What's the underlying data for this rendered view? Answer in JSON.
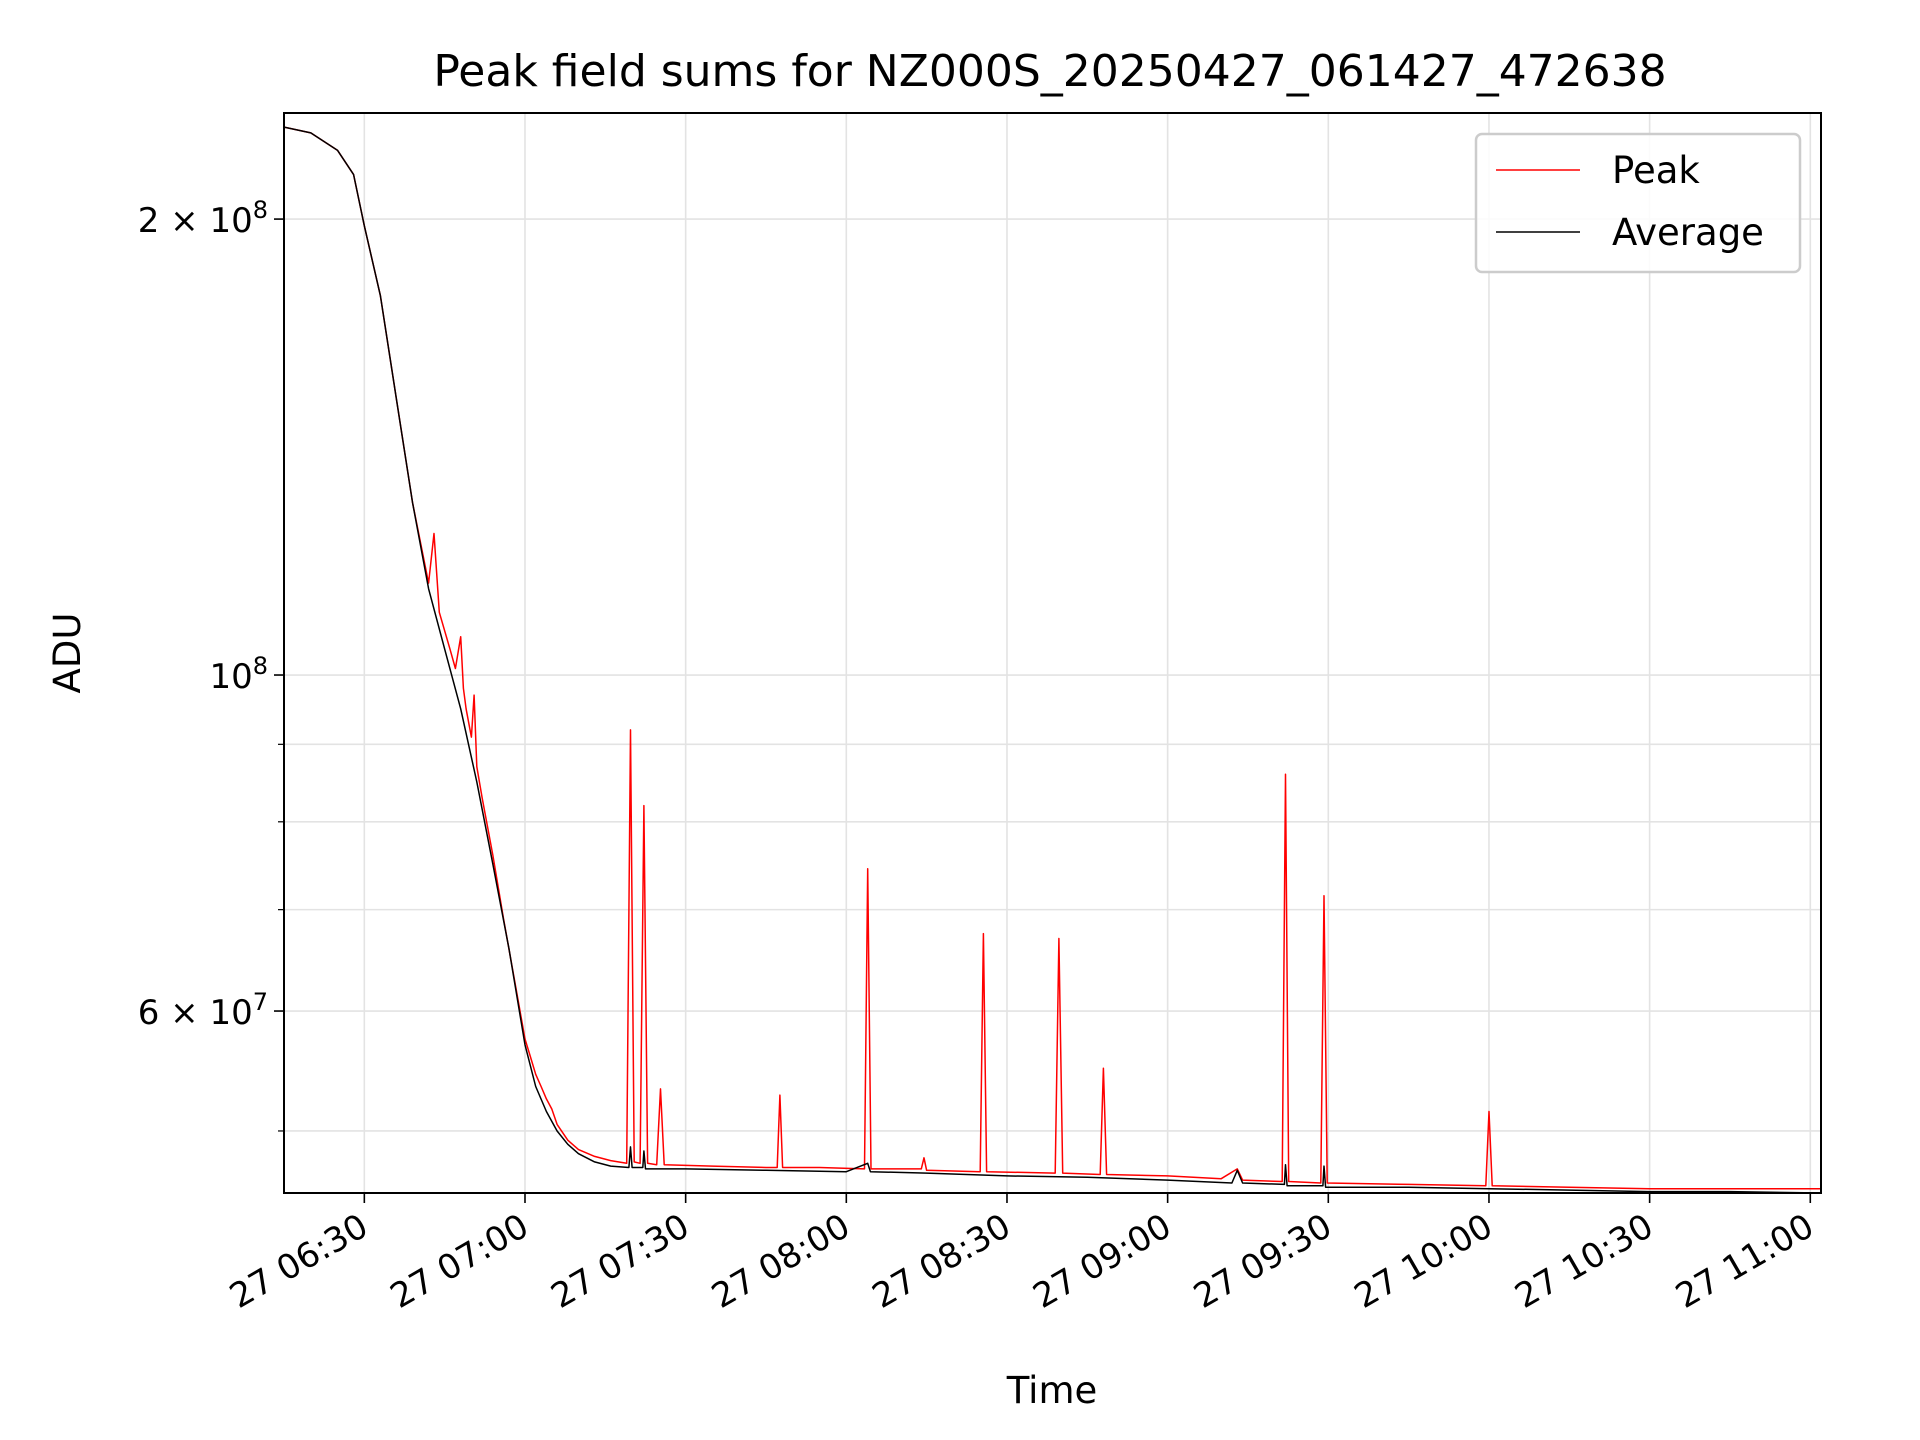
{
  "chart_data": {
    "type": "line",
    "title": "Peak field sums for NZ000S_20250427_061427_472638",
    "xlabel": "Time",
    "ylabel": "ADU",
    "y_scale": "log",
    "ylim": [
      45500000,
      235000000
    ],
    "xlim": [
      "2025-04-27 06:15",
      "2025-04-27 11:02"
    ],
    "x_ticks": [
      {
        "t": "2025-04-27 06:30",
        "label": "27 06:30"
      },
      {
        "t": "2025-04-27 07:00",
        "label": "27 07:00"
      },
      {
        "t": "2025-04-27 07:30",
        "label": "27 07:30"
      },
      {
        "t": "2025-04-27 08:00",
        "label": "27 08:00"
      },
      {
        "t": "2025-04-27 08:30",
        "label": "27 08:30"
      },
      {
        "t": "2025-04-27 09:00",
        "label": "27 09:00"
      },
      {
        "t": "2025-04-27 09:30",
        "label": "27 09:30"
      },
      {
        "t": "2025-04-27 10:00",
        "label": "27 10:00"
      },
      {
        "t": "2025-04-27 10:30",
        "label": "27 10:30"
      },
      {
        "t": "2025-04-27 11:00",
        "label": "27 11:00"
      }
    ],
    "y_major_ticks": [
      {
        "v": 100000000,
        "base": "10",
        "exp": "8"
      },
      {
        "v": 200000000,
        "base": "2 × 10",
        "exp": "8"
      },
      {
        "v": 60000000,
        "base": "6 × 10",
        "exp": "7"
      }
    ],
    "y_minor_ticks": [
      50000000,
      70000000,
      80000000,
      90000000
    ],
    "grid": true,
    "legend_position": "top-right",
    "series": [
      {
        "name": "Peak",
        "color": "#ff0000",
        "points": [
          [
            "2025-04-27 06:15",
            230000000
          ],
          [
            "2025-04-27 06:20",
            228000000
          ],
          [
            "2025-04-27 06:25",
            222000000
          ],
          [
            "2025-04-27 06:28",
            214000000
          ],
          [
            "2025-04-27 06:30",
            198000000
          ],
          [
            "2025-04-27 06:33",
            178000000
          ],
          [
            "2025-04-27 06:36",
            152000000
          ],
          [
            "2025-04-27 06:39",
            130000000
          ],
          [
            "2025-04-27 06:42",
            115000000
          ],
          [
            "2025-04-27 06:43",
            124000000
          ],
          [
            "2025-04-27 06:44",
            110000000
          ],
          [
            "2025-04-27 06:46",
            104000000
          ],
          [
            "2025-04-27 06:47",
            101000000
          ],
          [
            "2025-04-27 06:48",
            106000000
          ],
          [
            "2025-04-27 06:48.5",
            98000000
          ],
          [
            "2025-04-27 06:49",
            95000000
          ],
          [
            "2025-04-27 06:50",
            91000000
          ],
          [
            "2025-04-27 06:50.5",
            97000000
          ],
          [
            "2025-04-27 06:51",
            87000000
          ],
          [
            "2025-04-27 06:52",
            83000000
          ],
          [
            "2025-04-27 06:54",
            76000000
          ],
          [
            "2025-04-27 06:56",
            69000000
          ],
          [
            "2025-04-27 06:58",
            63000000
          ],
          [
            "2025-04-27 07:00",
            57500000
          ],
          [
            "2025-04-27 07:01",
            56000000
          ],
          [
            "2025-04-27 07:02",
            54500000
          ],
          [
            "2025-04-27 07:03",
            53500000
          ],
          [
            "2025-04-27 07:04",
            52500000
          ],
          [
            "2025-04-27 07:05",
            51700000
          ],
          [
            "2025-04-27 07:06",
            50500000
          ],
          [
            "2025-04-27 07:08",
            49300000
          ],
          [
            "2025-04-27 07:10",
            48600000
          ],
          [
            "2025-04-27 07:13",
            48100000
          ],
          [
            "2025-04-27 07:16",
            47800000
          ],
          [
            "2025-04-27 07:19",
            47600000
          ],
          [
            "2025-04-27 07:19.7",
            92000000
          ],
          [
            "2025-04-27 07:20.4",
            47700000
          ],
          [
            "2025-04-27 07:21.5",
            47600000
          ],
          [
            "2025-04-27 07:22.2",
            82000000
          ],
          [
            "2025-04-27 07:22.9",
            47600000
          ],
          [
            "2025-04-27 07:24.6",
            47500000
          ],
          [
            "2025-04-27 07:25.3",
            53300000
          ],
          [
            "2025-04-27 07:26",
            47500000
          ],
          [
            "2025-04-27 07:35",
            47400000
          ],
          [
            "2025-04-27 07:45",
            47300000
          ],
          [
            "2025-04-27 07:47.1",
            47300000
          ],
          [
            "2025-04-27 07:47.6",
            52800000
          ],
          [
            "2025-04-27 07:48.1",
            47300000
          ],
          [
            "2025-04-27 07:55",
            47300000
          ],
          [
            "2025-04-27 08:03.4",
            47200000
          ],
          [
            "2025-04-27 08:04",
            74500000
          ],
          [
            "2025-04-27 08:04.6",
            47200000
          ],
          [
            "2025-04-27 08:14",
            47200000
          ],
          [
            "2025-04-27 08:14.5",
            48000000
          ],
          [
            "2025-04-27 08:15",
            47100000
          ],
          [
            "2025-04-27 08:25",
            47000000
          ],
          [
            "2025-04-27 08:25.6",
            67500000
          ],
          [
            "2025-04-27 08:26.2",
            47000000
          ],
          [
            "2025-04-27 08:39",
            46900000
          ],
          [
            "2025-04-27 08:39.7",
            67000000
          ],
          [
            "2025-04-27 08:40.4",
            46900000
          ],
          [
            "2025-04-27 08:47.4",
            46800000
          ],
          [
            "2025-04-27 08:48",
            55000000
          ],
          [
            "2025-04-27 08:48.6",
            46800000
          ],
          [
            "2025-04-27 09:00",
            46700000
          ],
          [
            "2025-04-27 09:10",
            46500000
          ],
          [
            "2025-04-27 09:13",
            47200000
          ],
          [
            "2025-04-27 09:14",
            46400000
          ],
          [
            "2025-04-27 09:21.4",
            46300000
          ],
          [
            "2025-04-27 09:22",
            86000000
          ],
          [
            "2025-04-27 09:22.6",
            46300000
          ],
          [
            "2025-04-27 09:28.6",
            46200000
          ],
          [
            "2025-04-27 09:29.2",
            71500000
          ],
          [
            "2025-04-27 09:29.8",
            46200000
          ],
          [
            "2025-04-27 09:45",
            46100000
          ],
          [
            "2025-04-27 09:59.4",
            46000000
          ],
          [
            "2025-04-27 10:00",
            51500000
          ],
          [
            "2025-04-27 10:00.6",
            46000000
          ],
          [
            "2025-04-27 10:15",
            45900000
          ],
          [
            "2025-04-27 10:30",
            45800000
          ],
          [
            "2025-04-27 10:45",
            45800000
          ],
          [
            "2025-04-27 11:02",
            45800000
          ]
        ]
      },
      {
        "name": "Average",
        "color": "#000000",
        "points": [
          [
            "2025-04-27 06:15",
            230000000
          ],
          [
            "2025-04-27 06:20",
            228000000
          ],
          [
            "2025-04-27 06:25",
            222000000
          ],
          [
            "2025-04-27 06:28",
            214000000
          ],
          [
            "2025-04-27 06:30",
            198000000
          ],
          [
            "2025-04-27 06:33",
            178000000
          ],
          [
            "2025-04-27 06:36",
            152000000
          ],
          [
            "2025-04-27 06:39",
            130000000
          ],
          [
            "2025-04-27 06:42",
            114000000
          ],
          [
            "2025-04-27 06:45",
            104000000
          ],
          [
            "2025-04-27 06:48",
            95000000
          ],
          [
            "2025-04-27 06:51",
            85000000
          ],
          [
            "2025-04-27 06:54",
            75000000
          ],
          [
            "2025-04-27 06:57",
            66000000
          ],
          [
            "2025-04-27 07:00",
            57000000
          ],
          [
            "2025-04-27 07:02",
            53500000
          ],
          [
            "2025-04-27 07:04",
            51500000
          ],
          [
            "2025-04-27 07:06",
            50000000
          ],
          [
            "2025-04-27 07:08",
            49000000
          ],
          [
            "2025-04-27 07:10",
            48300000
          ],
          [
            "2025-04-27 07:13",
            47700000
          ],
          [
            "2025-04-27 07:16",
            47400000
          ],
          [
            "2025-04-27 07:19.4",
            47300000
          ],
          [
            "2025-04-27 07:19.7",
            48800000
          ],
          [
            "2025-04-27 07:20",
            47300000
          ],
          [
            "2025-04-27 07:22",
            47300000
          ],
          [
            "2025-04-27 07:22.2",
            48500000
          ],
          [
            "2025-04-27 07:22.5",
            47200000
          ],
          [
            "2025-04-27 07:30",
            47200000
          ],
          [
            "2025-04-27 07:45",
            47100000
          ],
          [
            "2025-04-27 08:00",
            47000000
          ],
          [
            "2025-04-27 08:04",
            47600000
          ],
          [
            "2025-04-27 08:04.5",
            47000000
          ],
          [
            "2025-04-27 08:15",
            46900000
          ],
          [
            "2025-04-27 08:30",
            46700000
          ],
          [
            "2025-04-27 08:45",
            46600000
          ],
          [
            "2025-04-27 09:00",
            46400000
          ],
          [
            "2025-04-27 09:12",
            46200000
          ],
          [
            "2025-04-27 09:13",
            47100000
          ],
          [
            "2025-04-27 09:14",
            46200000
          ],
          [
            "2025-04-27 09:21.8",
            46100000
          ],
          [
            "2025-04-27 09:22",
            47500000
          ],
          [
            "2025-04-27 09:22.3",
            46000000
          ],
          [
            "2025-04-27 09:29",
            46000000
          ],
          [
            "2025-04-27 09:29.2",
            47400000
          ],
          [
            "2025-04-27 09:29.5",
            45900000
          ],
          [
            "2025-04-27 09:45",
            45900000
          ],
          [
            "2025-04-27 10:00",
            45800000
          ],
          [
            "2025-04-27 10:15",
            45700000
          ],
          [
            "2025-04-27 10:30",
            45600000
          ],
          [
            "2025-04-27 10:45",
            45600000
          ],
          [
            "2025-04-27 11:02",
            45500000
          ]
        ]
      }
    ]
  }
}
